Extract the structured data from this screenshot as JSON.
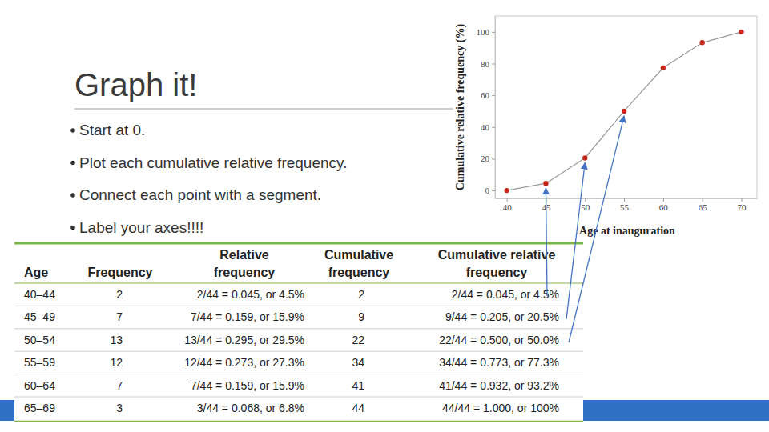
{
  "slide": {
    "title": "Graph it!",
    "bullets": [
      "Start at 0.",
      "Plot each cumulative relative frequency.",
      "Connect each point with a segment.",
      "Label your axes!!!!"
    ]
  },
  "chart_data": {
    "type": "line",
    "x_label": "Age at inauguration",
    "y_label": "Cumulative relative frequency (%)",
    "x": [
      40,
      45,
      50,
      55,
      60,
      65,
      70
    ],
    "values": [
      0,
      4.5,
      20.5,
      50,
      77.3,
      93.2,
      100
    ],
    "color": "#c8281e",
    "marker": "circle",
    "xlim": [
      38.5,
      72
    ],
    "ylim": [
      -5,
      110
    ],
    "xticks": [
      40,
      45,
      50,
      55,
      60,
      65,
      70
    ],
    "yticks": [
      0,
      20,
      40,
      60,
      80,
      100
    ],
    "grid": false
  },
  "table": {
    "columns": [
      "Age",
      "Frequency",
      "Relative frequency",
      "Cumulative frequency",
      "Cumulative relative frequency"
    ],
    "rows": [
      [
        "40–44",
        "2",
        "2/44 = 0.045, or 4.5%",
        "2",
        "2/44 = 0.045, or 4.5%"
      ],
      [
        "45–49",
        "7",
        "7/44 = 0.159, or 15.9%",
        "9",
        "9/44 = 0.205, or 20.5%"
      ],
      [
        "50–54",
        "13",
        "13/44 = 0.295, or 29.5%",
        "22",
        "22/44 = 0.500, or 50.0%"
      ],
      [
        "55–59",
        "12",
        "12/44 = 0.273, or 27.3%",
        "34",
        "34/44 = 0.773, or 77.3%"
      ],
      [
        "60–64",
        "7",
        "7/44 = 0.159, or 15.9%",
        "41",
        "41/44 = 0.932, or 93.2%"
      ],
      [
        "65–69",
        "3",
        "3/44 = 0.068, or 6.8%",
        "44",
        "44/44 = 1.000, or 100%"
      ]
    ]
  }
}
